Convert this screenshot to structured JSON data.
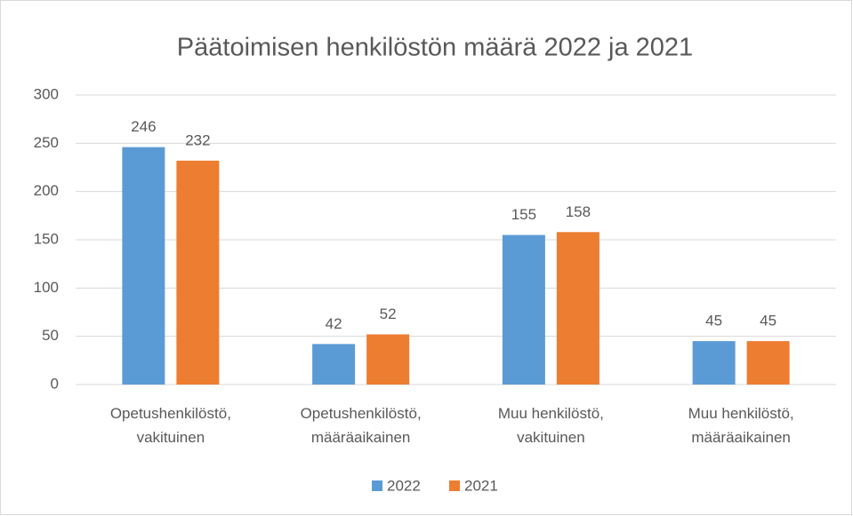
{
  "chart_data": {
    "type": "bar",
    "title": "Päätoimisen henkilöstön määrä 2022 ja 2021",
    "categories": [
      "Opetushenkilöstö, vakituinen",
      "Opetushenkilöstö, määräaikainen",
      "Muu henkilöstö, vakituinen",
      "Muu henkilöstö, määräaikainen"
    ],
    "series": [
      {
        "name": "2022",
        "color": "#5b9bd5",
        "values": [
          246,
          42,
          155,
          45
        ]
      },
      {
        "name": "2021",
        "color": "#ed7d31",
        "values": [
          232,
          52,
          158,
          45
        ]
      }
    ],
    "ylim": [
      0,
      300
    ],
    "yticks": [
      0,
      50,
      100,
      150,
      200,
      250,
      300
    ],
    "grid": true,
    "legend": "bottom"
  }
}
